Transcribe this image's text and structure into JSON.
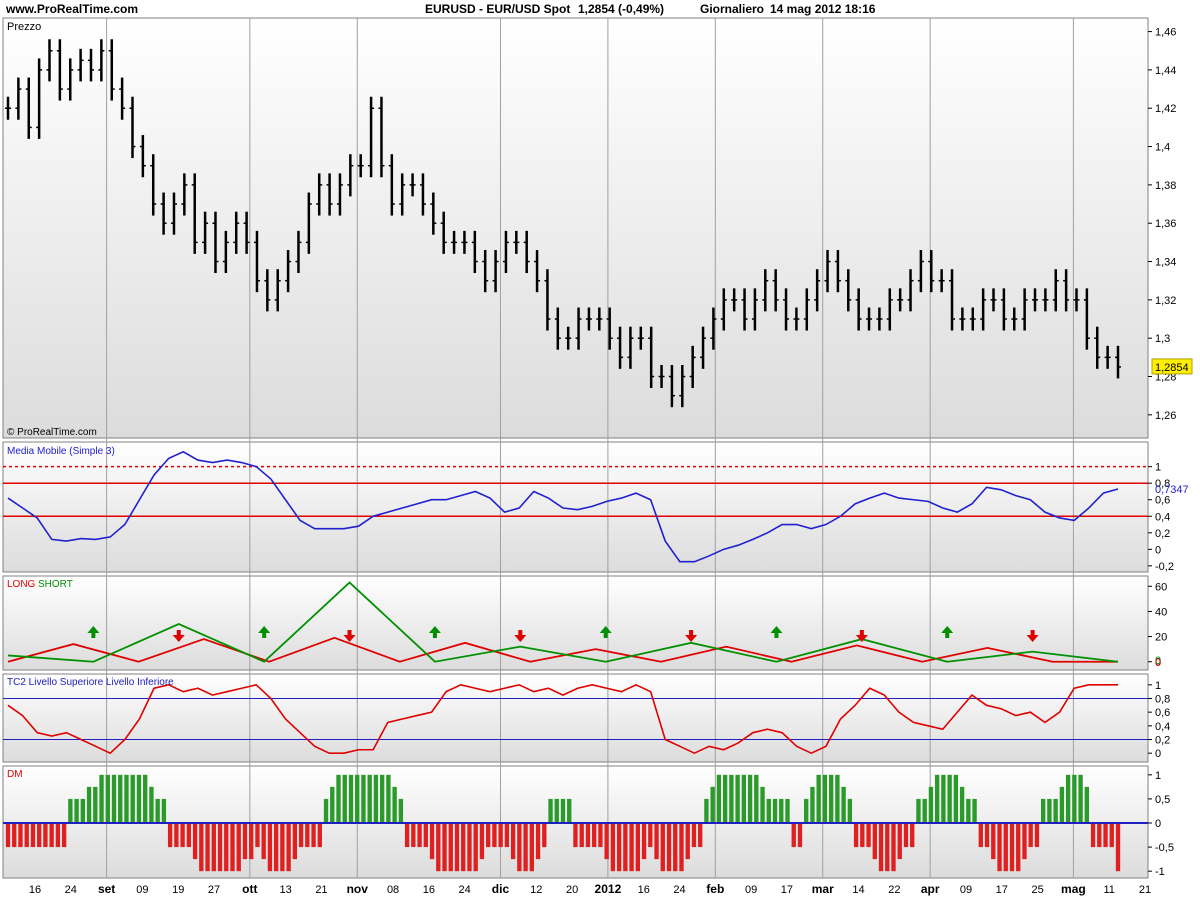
{
  "header": {
    "site": "www.ProRealTime.com",
    "instrument": "EURUSD - EUR/USD Spot",
    "quote": "1,2854 (-0,49%)",
    "period": "Giornaliero",
    "datetime": "14 mag 2012 18:16"
  },
  "copyright": "© ProRealTime.com",
  "colors": {
    "price": "#000000",
    "ma_line": "#2020d0",
    "level": "#e00000",
    "long": "#e00000",
    "short": "#009000",
    "tc2_line": "#e00000",
    "tc2_level": "#2020c0",
    "dm_pos": "#2a9a2a",
    "dm_neg": "#e02020",
    "last_price_bg": "#ffee00"
  },
  "x_axis": {
    "ticks": [
      {
        "label": "16",
        "bold": false
      },
      {
        "label": "24",
        "bold": false
      },
      {
        "label": "set",
        "bold": true
      },
      {
        "label": "09",
        "bold": false
      },
      {
        "label": "19",
        "bold": false
      },
      {
        "label": "27",
        "bold": false
      },
      {
        "label": "ott",
        "bold": true
      },
      {
        "label": "13",
        "bold": false
      },
      {
        "label": "21",
        "bold": false
      },
      {
        "label": "nov",
        "bold": true
      },
      {
        "label": "08",
        "bold": false
      },
      {
        "label": "16",
        "bold": false
      },
      {
        "label": "24",
        "bold": false
      },
      {
        "label": "dic",
        "bold": true
      },
      {
        "label": "12",
        "bold": false
      },
      {
        "label": "20",
        "bold": false
      },
      {
        "label": "2012",
        "bold": true
      },
      {
        "label": "16",
        "bold": false
      },
      {
        "label": "24",
        "bold": false
      },
      {
        "label": "feb",
        "bold": true
      },
      {
        "label": "09",
        "bold": false
      },
      {
        "label": "17",
        "bold": false
      },
      {
        "label": "mar",
        "bold": true
      },
      {
        "label": "14",
        "bold": false
      },
      {
        "label": "22",
        "bold": false
      },
      {
        "label": "apr",
        "bold": true
      },
      {
        "label": "09",
        "bold": false
      },
      {
        "label": "17",
        "bold": false
      },
      {
        "label": "25",
        "bold": false
      },
      {
        "label": "mag",
        "bold": true
      },
      {
        "label": "11",
        "bold": false
      },
      {
        "label": "21",
        "bold": false
      }
    ],
    "separators": [
      "set",
      "ott",
      "nov",
      "dic",
      "2012",
      "feb",
      "mar",
      "apr",
      "mag"
    ]
  },
  "chart_data": [
    {
      "type": "ohlc",
      "title": "Prezzo",
      "ylim": [
        1.25,
        1.465
      ],
      "y_ticks": [
        "1,46",
        "1,44",
        "1,42",
        "1,4",
        "1,38",
        "1,36",
        "1,34",
        "1,32",
        "1,3",
        "1,28",
        "1,26"
      ],
      "last_value": "1,2854",
      "closes_approx": [
        1.42,
        1.43,
        1.41,
        1.44,
        1.45,
        1.43,
        1.44,
        1.445,
        1.44,
        1.45,
        1.43,
        1.42,
        1.4,
        1.39,
        1.37,
        1.36,
        1.37,
        1.38,
        1.35,
        1.36,
        1.34,
        1.35,
        1.36,
        1.35,
        1.33,
        1.32,
        1.33,
        1.34,
        1.35,
        1.37,
        1.38,
        1.37,
        1.38,
        1.39,
        1.39,
        1.42,
        1.39,
        1.37,
        1.38,
        1.38,
        1.37,
        1.36,
        1.35,
        1.35,
        1.35,
        1.34,
        1.33,
        1.34,
        1.35,
        1.35,
        1.34,
        1.33,
        1.31,
        1.3,
        1.3,
        1.31,
        1.31,
        1.31,
        1.3,
        1.29,
        1.3,
        1.3,
        1.28,
        1.28,
        1.27,
        1.28,
        1.29,
        1.3,
        1.31,
        1.32,
        1.32,
        1.31,
        1.32,
        1.33,
        1.32,
        1.31,
        1.31,
        1.32,
        1.33,
        1.34,
        1.33,
        1.32,
        1.31,
        1.31,
        1.31,
        1.32,
        1.32,
        1.33,
        1.34,
        1.33,
        1.33,
        1.31,
        1.31,
        1.31,
        1.32,
        1.32,
        1.31,
        1.31,
        1.32,
        1.32,
        1.32,
        1.33,
        1.32,
        1.32,
        1.3,
        1.29,
        1.29,
        1.285
      ]
    },
    {
      "type": "line",
      "title": "Media Mobile (Simple 3)",
      "ylim": [
        -0.25,
        1.25
      ],
      "y_ticks": [
        "1",
        "0,8",
        "0,6",
        "0,4",
        "0,2",
        "0",
        "-0,2"
      ],
      "levels": [
        1.0,
        0.8,
        0.4
      ],
      "last_value": "0,7347",
      "values": [
        0.62,
        0.5,
        0.38,
        0.12,
        0.1,
        0.13,
        0.12,
        0.15,
        0.3,
        0.6,
        0.9,
        1.1,
        1.18,
        1.08,
        1.05,
        1.08,
        1.05,
        1.0,
        0.85,
        0.6,
        0.35,
        0.25,
        0.25,
        0.25,
        0.28,
        0.4,
        0.45,
        0.5,
        0.55,
        0.6,
        0.6,
        0.65,
        0.7,
        0.62,
        0.45,
        0.5,
        0.7,
        0.62,
        0.5,
        0.48,
        0.52,
        0.58,
        0.62,
        0.68,
        0.6,
        0.1,
        -0.15,
        -0.15,
        -0.08,
        0.0,
        0.05,
        0.12,
        0.2,
        0.3,
        0.3,
        0.25,
        0.3,
        0.4,
        0.55,
        0.62,
        0.68,
        0.62,
        0.6,
        0.58,
        0.5,
        0.45,
        0.55,
        0.75,
        0.72,
        0.65,
        0.6,
        0.45,
        0.38,
        0.35,
        0.5,
        0.68,
        0.73
      ]
    },
    {
      "type": "line",
      "title_parts": [
        "LONG",
        "SHORT"
      ],
      "ylim": [
        -5,
        65
      ],
      "y_ticks": [
        "60",
        "40",
        "20",
        "0"
      ],
      "series": [
        {
          "name": "LONG",
          "segments": [
            [
              0,
              0
            ],
            [
              1,
              14
            ],
            [
              2,
              0
            ],
            [
              3,
              18
            ],
            [
              4,
              0
            ],
            [
              5,
              19
            ],
            [
              6,
              0
            ],
            [
              7,
              15
            ],
            [
              8,
              0
            ],
            [
              9,
              10
            ],
            [
              10,
              0
            ],
            [
              11,
              12
            ],
            [
              12,
              0
            ],
            [
              13,
              13
            ],
            [
              14,
              0
            ],
            [
              15,
              11
            ],
            [
              16,
              0
            ],
            [
              17,
              0
            ]
          ]
        },
        {
          "name": "SHORT",
          "segments": [
            [
              0,
              5
            ],
            [
              1,
              0
            ],
            [
              2,
              30
            ],
            [
              3,
              0
            ],
            [
              4,
              63
            ],
            [
              5,
              0
            ],
            [
              6,
              12
            ],
            [
              7,
              0
            ],
            [
              8,
              15
            ],
            [
              9,
              0
            ],
            [
              10,
              18
            ],
            [
              11,
              0
            ],
            [
              12,
              8
            ],
            [
              13,
              0
            ]
          ]
        }
      ],
      "arrows": [
        {
          "dir": "up",
          "color": "short"
        },
        {
          "dir": "down",
          "color": "long"
        },
        {
          "dir": "up",
          "color": "short"
        },
        {
          "dir": "down",
          "color": "long"
        },
        {
          "dir": "up",
          "color": "short"
        },
        {
          "dir": "down",
          "color": "long"
        },
        {
          "dir": "up",
          "color": "short"
        },
        {
          "dir": "down",
          "color": "long"
        },
        {
          "dir": "up",
          "color": "short"
        },
        {
          "dir": "down",
          "color": "long"
        },
        {
          "dir": "up",
          "color": "short"
        },
        {
          "dir": "down",
          "color": "long"
        }
      ],
      "last_values": [
        "0",
        "0"
      ]
    },
    {
      "type": "line",
      "title": "TC2 Livello Superiore Livello Inferiore",
      "ylim": [
        -0.1,
        1.1
      ],
      "y_ticks": [
        "1",
        "0,8",
        "0,6",
        "0,4",
        "0,2",
        "0"
      ],
      "levels": [
        0.8,
        0.2
      ],
      "last_value": "0,8",
      "last_value2": "0,2",
      "values": [
        0.7,
        0.55,
        0.3,
        0.25,
        0.3,
        0.2,
        0.1,
        0.0,
        0.2,
        0.5,
        0.95,
        1.0,
        0.9,
        0.95,
        0.85,
        0.9,
        0.95,
        1.0,
        0.8,
        0.5,
        0.3,
        0.1,
        0.0,
        0.0,
        0.05,
        0.05,
        0.45,
        0.5,
        0.55,
        0.6,
        0.9,
        1.0,
        0.95,
        0.9,
        0.95,
        1.0,
        0.9,
        0.95,
        0.85,
        0.95,
        1.0,
        0.95,
        0.9,
        1.0,
        0.9,
        0.2,
        0.1,
        0.0,
        0.1,
        0.05,
        0.15,
        0.3,
        0.35,
        0.3,
        0.1,
        0.0,
        0.1,
        0.5,
        0.7,
        0.95,
        0.85,
        0.6,
        0.45,
        0.4,
        0.35,
        0.6,
        0.85,
        0.7,
        0.65,
        0.55,
        0.6,
        0.45,
        0.6,
        0.95,
        1.0,
        1.0,
        1.0
      ]
    },
    {
      "type": "bar",
      "title": "DM",
      "ylim": [
        -1.1,
        1.1
      ],
      "y_ticks": [
        "1",
        "0,5",
        "0",
        "-0,5",
        "-1"
      ],
      "values": [
        -0.5,
        -0.5,
        -0.5,
        -0.5,
        -0.5,
        -0.5,
        -0.5,
        -0.5,
        -0.5,
        -0.5,
        0.5,
        0.5,
        0.5,
        0.75,
        0.75,
        1,
        1,
        1,
        1,
        1,
        1,
        1,
        1,
        0.75,
        0.5,
        0.5,
        -0.5,
        -0.5,
        -0.5,
        -0.5,
        -0.75,
        -1,
        -1,
        -1,
        -1,
        -1,
        -1,
        -1,
        -0.75,
        -0.75,
        -0.5,
        -0.75,
        -1,
        -1,
        -1,
        -1,
        -0.75,
        -0.5,
        -0.5,
        -0.5,
        -0.5,
        0.5,
        0.75,
        1,
        1,
        1,
        1,
        1,
        1,
        1,
        1,
        1,
        0.75,
        0.5,
        -0.5,
        -0.5,
        -0.5,
        -0.5,
        -0.75,
        -1,
        -1,
        -1,
        -1,
        -1,
        -1,
        -1,
        -0.75,
        -0.5,
        -0.5,
        -0.5,
        -0.5,
        -0.75,
        -1,
        -1,
        -1,
        -0.75,
        -0.5,
        0.5,
        0.5,
        0.5,
        0.5,
        -0.5,
        -0.5,
        -0.5,
        -0.5,
        -0.5,
        -0.75,
        -1,
        -1,
        -1,
        -1,
        -1,
        -0.75,
        -0.5,
        -0.75,
        -1,
        -1,
        -1,
        -1,
        -0.75,
        -0.5,
        -0.5,
        0.5,
        0.75,
        1,
        1,
        1,
        1,
        1,
        1,
        1,
        0.75,
        0.5,
        0.5,
        0.5,
        0.5,
        -0.5,
        -0.5,
        0.5,
        0.75,
        1,
        1,
        1,
        1,
        0.75,
        0.5,
        -0.5,
        -0.5,
        -0.5,
        -0.75,
        -1,
        -1,
        -1,
        -0.75,
        -0.5,
        -0.5,
        0.5,
        0.5,
        0.75,
        1,
        1,
        1,
        1,
        0.75,
        0.5,
        0.5,
        -0.5,
        -0.5,
        -0.75,
        -1,
        -1,
        -1,
        -1,
        -0.75,
        -0.5,
        -0.5,
        0.5,
        0.5,
        0.5,
        0.75,
        1,
        1,
        1,
        0.75,
        -0.5,
        -0.5,
        -0.5,
        -0.5,
        -1
      ]
    }
  ]
}
